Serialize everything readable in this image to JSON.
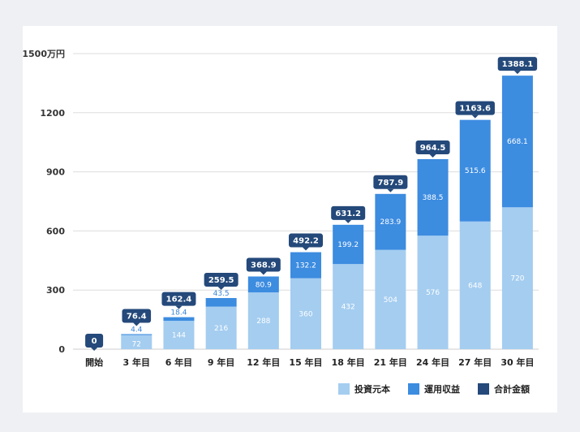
{
  "chart_data": {
    "type": "bar",
    "stacked": true,
    "unit": "万円",
    "ylim": [
      0,
      1500
    ],
    "yticks": [
      0,
      300,
      600,
      900,
      1200,
      1500
    ],
    "ytick_labels": [
      "0",
      "300",
      "600",
      "900",
      "1200",
      "1500万円"
    ],
    "categories": [
      "開始",
      "3 年目",
      "6 年目",
      "9 年目",
      "12 年目",
      "15 年目",
      "18 年目",
      "21 年目",
      "24 年目",
      "27 年目",
      "30 年目"
    ],
    "series": [
      {
        "name": "投資元本",
        "color": "#a4cdf0",
        "values": [
          0,
          72,
          144,
          216,
          288,
          360,
          432,
          504,
          576,
          648,
          720
        ],
        "labels": [
          "",
          "72",
          "144",
          "216",
          "288",
          "360",
          "432",
          "504",
          "576",
          "648",
          "720"
        ]
      },
      {
        "name": "運用収益",
        "color": "#3c8ce0",
        "values": [
          0,
          4.4,
          18.4,
          43.5,
          80.9,
          132.2,
          199.2,
          283.9,
          388.5,
          515.6,
          668.1
        ],
        "labels": [
          "",
          "4.4",
          "18.4",
          "43.5",
          "80.9",
          "132.2",
          "199.2",
          "283.9",
          "388.5",
          "515.6",
          "668.1"
        ]
      }
    ],
    "totals": {
      "name": "合計金額",
      "color": "#24497a",
      "values": [
        0,
        76.4,
        162.4,
        259.5,
        368.9,
        492.2,
        631.2,
        787.9,
        964.5,
        1163.6,
        1388.1
      ],
      "labels": [
        "0",
        "76.4",
        "162.4",
        "259.5",
        "368.9",
        "492.2",
        "631.2",
        "787.9",
        "964.5",
        "1163.6",
        "1388.1"
      ]
    },
    "legend": [
      "投資元本",
      "運用収益",
      "合計金額"
    ],
    "legend_position": "bottom-right"
  }
}
